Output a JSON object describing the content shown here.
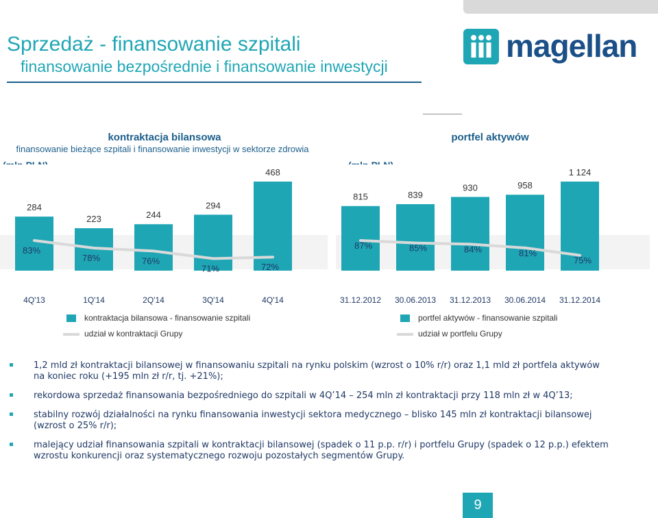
{
  "header": {
    "title": "Sprzedaż - finansowanie szpitali",
    "subtitle": "finansowanie bezpośrednie i finansowanie inwestycji",
    "logo_text": "magellan",
    "logo_color": "#1b4f87",
    "accent_color": "#1fa6b5"
  },
  "left_panel": {
    "title": "kontraktacja bilansowa",
    "subtitle": "finansowanie bieżące szpitali i finansowanie inwestycji w sektorze zdrowia",
    "unit": "(mln PLN)",
    "legend_bar": "kontraktacja bilansowa - finansowanie szpitali",
    "legend_line": "udział w kontraktacji Grupy"
  },
  "right_panel": {
    "title": "portfel aktywów",
    "unit": "(mln PLN)",
    "legend_bar": "portfel aktywów - finansowanie szpitali",
    "legend_line": "udział w portfelu Grupy"
  },
  "chart_data": [
    {
      "type": "bar",
      "categories": [
        "4Q'13",
        "1Q'14",
        "2Q'14",
        "3Q'14",
        "4Q'14"
      ],
      "series": [
        {
          "name": "kontraktacja bilansowa - finansowanie szpitali",
          "values": [
            284,
            223,
            244,
            294,
            468
          ],
          "labels": [
            "284",
            "223",
            "244",
            "294",
            "468"
          ]
        },
        {
          "name": "udział w kontraktacji Grupy",
          "type": "line",
          "values": [
            83,
            78,
            76,
            71,
            72
          ],
          "labels": [
            "83%",
            "78%",
            "76%",
            "71%",
            "72%"
          ]
        }
      ],
      "colors": {
        "bar": "#1fa6b5",
        "line": "#d9d9d9"
      }
    },
    {
      "type": "bar",
      "categories": [
        "31.12.2012",
        "30.06.2013",
        "31.12.2013",
        "30.06.2014",
        "31.12.2014"
      ],
      "series": [
        {
          "name": "portfel aktywów - finansowanie szpitali",
          "values": [
            815,
            839,
            930,
            958,
            1124
          ],
          "labels": [
            "815",
            "839",
            "930",
            "958",
            "1 124"
          ]
        },
        {
          "name": "udział w portfelu Grupy",
          "type": "line",
          "values": [
            87,
            85,
            84,
            81,
            75
          ],
          "labels": [
            "87%",
            "85%",
            "84%",
            "81%",
            "75%"
          ]
        }
      ],
      "colors": {
        "bar": "#1fa6b5",
        "line": "#d9d9d9"
      }
    }
  ],
  "bullets": [
    "1,2 mld zł kontraktacji bilansowej w finansowaniu szpitali na rynku polskim (wzrost o 10% r/r) oraz 1,1 mld zł portfela aktywów na koniec roku (+195 mln zł r/r, tj. +21%);",
    "rekordowa sprzedaż finansowania bezpośredniego do szpitali w 4Q’14 – 254 mln zł kontraktacji przy 118 mln zł w 4Q’13;",
    "stabilny rozwój działalności na rynku finansowania inwestycji sektora medycznego – blisko 145 mln zł kontraktacji bilansowej (wzrost o 25% r/r);",
    "malejący udział finansowania szpitali w kontraktacji bilansowej (spadek o 11 p.p. r/r) i portfelu Grupy (spadek o 12 p.p.) efektem wzrostu konkurencji oraz systematycznego rozwoju pozostałych segmentów Grupy."
  ],
  "page_number": "9"
}
